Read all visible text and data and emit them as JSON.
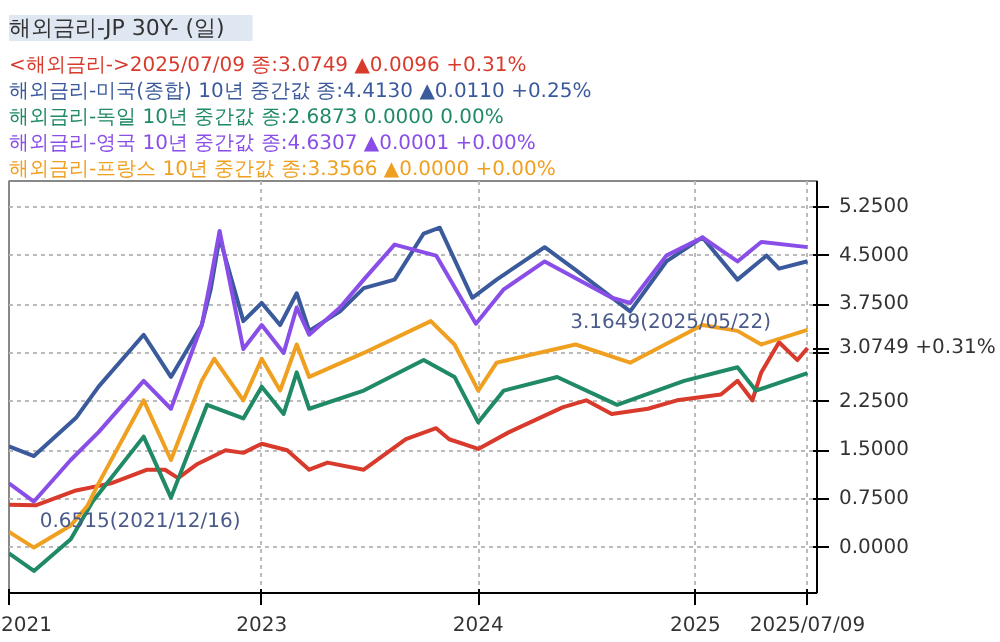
{
  "chart_data": {
    "type": "line",
    "title": "해외금리-JP     30Y- (일)",
    "grid": true,
    "marker": "none",
    "line_style": "solid",
    "xlim": [
      "2021-11-01",
      "2025-07-25"
    ],
    "xticks": [
      {
        "value": "2021-11-01",
        "label": "2021"
      },
      {
        "value": "2023-01-01",
        "label": "2023"
      },
      {
        "value": "2024-01-01",
        "label": "2024"
      },
      {
        "value": "2025-01-01",
        "label": "2025"
      },
      {
        "value": "2025-07-09",
        "label": "2025/07/09"
      }
    ],
    "ylim": [
      -0.7,
      5.65
    ],
    "yticks": [
      {
        "value": 0,
        "label": "0.0000"
      },
      {
        "value": 0.75,
        "label": "0.7500"
      },
      {
        "value": 1.5,
        "label": "1.5000"
      },
      {
        "value": 2.25,
        "label": "2.2500"
      },
      {
        "value": 3.0,
        "label": null
      },
      {
        "value": 3.75,
        "label": "3.7500"
      },
      {
        "value": 4.5,
        "label": "4.5000"
      },
      {
        "value": 5.25,
        "label": "5.2500"
      }
    ],
    "annotations": [
      {
        "text": "0.6515(2021/12/16)",
        "x": "2021-12-16",
        "y": 0.6515
      },
      {
        "text": "3.1649(2025/05/22)",
        "x": "2025-05-22",
        "y": 3.1649
      },
      {
        "text": "3.0749 +0.31%",
        "x": "2025-07-09",
        "y": 3.0749
      }
    ],
    "series": [
      {
        "name": "<해외금리->2025/07/09 종:3.0749 ▲0.0096 +0.31%",
        "color": "#d83a2c",
        "x": [
          "2021-11-01",
          "2021-12-16",
          "2022-02-22",
          "2022-04-22",
          "2022-06-22",
          "2022-07-22",
          "2022-08-13",
          "2022-09-13",
          "2022-11-01",
          "2022-12-01",
          "2023-01-01",
          "2023-02-13",
          "2023-03-22",
          "2023-04-22",
          "2023-06-22",
          "2023-09-01",
          "2023-10-22",
          "2023-11-13",
          "2024-01-01",
          "2024-02-22",
          "2024-05-22",
          "2024-07-01",
          "2024-08-13",
          "2024-10-13",
          "2024-12-01",
          "2025-02-13",
          "2025-03-13",
          "2025-04-07",
          "2025-04-22",
          "2025-05-22",
          "2025-06-22",
          "2025-07-09"
        ],
        "values": [
          0.66,
          0.6515,
          0.88,
          0.99,
          1.2,
          1.2,
          1.07,
          1.28,
          1.5,
          1.46,
          1.6,
          1.5,
          1.2,
          1.31,
          1.2,
          1.67,
          1.84,
          1.67,
          1.52,
          1.78,
          2.16,
          2.27,
          2.06,
          2.14,
          2.27,
          2.36,
          2.57,
          2.27,
          2.7,
          3.1649,
          2.89,
          3.0749
        ]
      },
      {
        "name": "해외금리-미국(종합) 10년 중간값 종:4.4130 ▲0.0110 +0.25%",
        "color": "#3a5a9c",
        "x": [
          "2021-11-01",
          "2021-12-13",
          "2022-02-22",
          "2022-04-01",
          "2022-06-16",
          "2022-08-01",
          "2022-09-22",
          "2022-10-07",
          "2022-10-22",
          "2022-12-01",
          "2023-01-01",
          "2023-02-01",
          "2023-03-01",
          "2023-03-22",
          "2023-05-13",
          "2023-06-22",
          "2023-08-13",
          "2023-10-01",
          "2023-10-28",
          "2023-12-22",
          "2024-02-01",
          "2024-04-22",
          "2024-06-13",
          "2024-09-13",
          "2024-11-13",
          "2025-01-13",
          "2025-03-13",
          "2025-05-01",
          "2025-05-22",
          "2025-07-09"
        ],
        "values": [
          1.56,
          1.41,
          2.0,
          2.48,
          3.28,
          2.63,
          3.43,
          3.98,
          4.78,
          3.49,
          3.77,
          3.43,
          3.92,
          3.34,
          3.64,
          4.0,
          4.13,
          4.84,
          4.93,
          3.85,
          4.13,
          4.63,
          4.28,
          3.64,
          4.41,
          4.78,
          4.13,
          4.5,
          4.3,
          4.413
        ]
      },
      {
        "name": "해외금리-독일 10년 중간값 종:2.6873 0.0000 0.00%",
        "color": "#1f8a64",
        "x": [
          "2021-11-01",
          "2021-12-13",
          "2022-02-13",
          "2022-03-22",
          "2022-06-16",
          "2022-08-01",
          "2022-10-01",
          "2022-12-01",
          "2023-01-01",
          "2023-02-07",
          "2023-03-01",
          "2023-03-22",
          "2023-06-22",
          "2023-10-01",
          "2023-11-22",
          "2024-01-01",
          "2024-02-13",
          "2024-05-13",
          "2024-08-22",
          "2024-12-13",
          "2025-03-13",
          "2025-04-13",
          "2025-07-09"
        ],
        "values": [
          -0.09,
          -0.36,
          0.13,
          0.71,
          1.71,
          0.77,
          2.2,
          1.99,
          2.48,
          2.06,
          2.7,
          2.14,
          2.42,
          2.89,
          2.63,
          1.93,
          2.42,
          2.63,
          2.2,
          2.57,
          2.78,
          2.42,
          2.6873
        ]
      },
      {
        "name": "해외금리-영국 10년 중간값 종:4.6307 ▲0.0001 +0.00%",
        "color": "#8a4ee8",
        "x": [
          "2021-11-01",
          "2021-12-13",
          "2022-02-13",
          "2022-04-01",
          "2022-06-16",
          "2022-08-01",
          "2022-09-22",
          "2022-10-07",
          "2022-10-22",
          "2022-12-01",
          "2023-01-01",
          "2023-02-07",
          "2023-03-01",
          "2023-03-22",
          "2023-05-13",
          "2023-06-22",
          "2023-08-13",
          "2023-10-22",
          "2023-12-28",
          "2024-02-13",
          "2024-04-22",
          "2024-08-13",
          "2024-09-13",
          "2024-11-13",
          "2025-01-13",
          "2025-03-13",
          "2025-04-22",
          "2025-07-09"
        ],
        "values": [
          0.99,
          0.71,
          1.35,
          1.78,
          2.57,
          2.14,
          3.43,
          4.13,
          4.88,
          3.06,
          3.43,
          3.0,
          3.7,
          3.28,
          3.7,
          4.13,
          4.67,
          4.5,
          3.45,
          3.98,
          4.41,
          3.85,
          3.77,
          4.5,
          4.78,
          4.41,
          4.71,
          4.6307
        ]
      },
      {
        "name": "해외금리-프랑스 10년 중간값 종:3.3566 ▲0.0000 +0.00%",
        "color": "#f0a020",
        "x": [
          "2021-11-01",
          "2021-12-13",
          "2022-02-13",
          "2022-03-13",
          "2022-04-01",
          "2022-06-16",
          "2022-08-01",
          "2022-09-22",
          "2022-10-13",
          "2022-12-01",
          "2023-01-01",
          "2023-02-01",
          "2023-03-01",
          "2023-03-22",
          "2023-06-22",
          "2023-10-13",
          "2023-11-22",
          "2024-01-01",
          "2024-02-01",
          "2024-06-13",
          "2024-09-13",
          "2025-01-13",
          "2025-03-13",
          "2025-04-22",
          "2025-07-09"
        ],
        "values": [
          0.24,
          0.0,
          0.34,
          0.64,
          0.99,
          2.27,
          1.35,
          2.57,
          2.91,
          2.27,
          2.91,
          2.42,
          3.13,
          2.63,
          3.0,
          3.49,
          3.13,
          2.42,
          2.85,
          3.13,
          2.85,
          3.43,
          3.34,
          3.13,
          3.3566
        ]
      }
    ]
  }
}
